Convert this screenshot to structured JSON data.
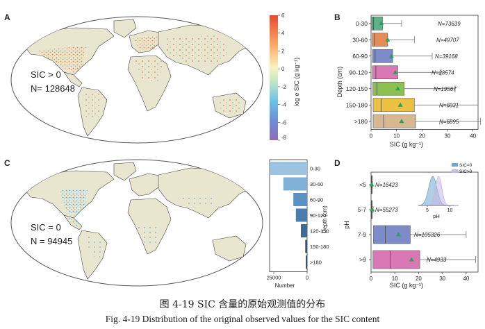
{
  "panelA": {
    "letter": "A",
    "annot_line1": "SIC > 0",
    "annot_line2": "N= 128648",
    "colorbar": {
      "ticks": [
        "6",
        "4",
        "2",
        "0",
        "-2",
        "-4",
        "-6",
        "-8"
      ],
      "label": "log e SIC (g kg⁻¹)"
    }
  },
  "panelB": {
    "letter": "B",
    "xlabel": "SIC (g kg⁻¹)",
    "ylabel": "Depth (cm)",
    "xticks": [
      "0",
      "10",
      "20",
      "30",
      "40"
    ]
  },
  "panelC": {
    "letter": "C",
    "annot_line1": "SIC = 0",
    "annot_line2": "N = 94945",
    "hist_xlabel": "Number",
    "hist_ylabel": "Depth (cm)",
    "hist_xticks": [
      "25000",
      "0"
    ]
  },
  "panelD": {
    "letter": "D",
    "xlabel": "SIC (g kg⁻¹)",
    "ylabel": "pH",
    "xticks": [
      "0",
      "10",
      "20",
      "30",
      "40"
    ],
    "inset": {
      "xlabel": "pH",
      "xticks": [
        "5",
        "10"
      ],
      "legend": [
        "SIC=0",
        "SIC>0"
      ]
    }
  },
  "caption": {
    "cn": "图 4-19   SIC 含量的原始观测值的分布",
    "en": "Fig. 4-19 Distribution of the original observed values for the SIC content"
  },
  "chart_data": [
    {
      "type": "box",
      "name": "B",
      "categories": [
        "0-30",
        "30-60",
        "60-90",
        "90-120",
        "120-150",
        "150-180",
        ">180"
      ],
      "n_labels": [
        "N=73639",
        "N=49707",
        "N=39168",
        "N=28574",
        "N=19567",
        "N=6031",
        "N=6895"
      ],
      "q1": [
        0.3,
        0.5,
        0.6,
        0.6,
        0.7,
        0.8,
        0.8
      ],
      "median": [
        1.0,
        1.4,
        1.6,
        1.9,
        2.3,
        4.0,
        5.0
      ],
      "q3": [
        4.5,
        6.5,
        8.5,
        10.5,
        13,
        17,
        17.5
      ],
      "mean": [
        4.0,
        6.5,
        8.0,
        9.5,
        10.5,
        11.5,
        12.0
      ],
      "whisker_max": [
        12,
        17,
        24,
        27.5,
        33,
        42,
        43
      ],
      "colors": [
        "#5fb08c",
        "#e68c5a",
        "#7d8cc8",
        "#d978b4",
        "#8cc050",
        "#eec040",
        "#d8b890"
      ],
      "xlim": [
        0,
        42
      ]
    },
    {
      "type": "bar",
      "name": "C-histogram",
      "categories": [
        "0-30",
        "30-60",
        "60-90",
        "90-120",
        "120-150",
        "150-180",
        ">180"
      ],
      "values": [
        30000,
        19000,
        11000,
        9000,
        5000,
        1500,
        1000
      ],
      "colors": [
        "#9cc3e2",
        "#7fb0d8",
        "#5b92c4",
        "#4a7cae",
        "#3e6a96",
        "#2f5478",
        "#26445e"
      ],
      "xlim": [
        0,
        30000
      ]
    },
    {
      "type": "box",
      "name": "D",
      "categories": [
        "<5",
        "5-7",
        "7-9",
        ">9"
      ],
      "n_labels": [
        "N=16423",
        "N=55273",
        "N=105326",
        "N=4933"
      ],
      "q1": [
        0.1,
        0.1,
        1.0,
        0.8
      ],
      "median": [
        0.2,
        0.2,
        6.0,
        8.0
      ],
      "q3": [
        0.3,
        0.3,
        16.5,
        20.5
      ],
      "mean": [
        0.3,
        0.5,
        11.5,
        17.0
      ],
      "whisker_max": [
        0.6,
        0.9,
        40,
        44
      ],
      "colors": [
        "#888888",
        "#888888",
        "#7d8cc8",
        "#d978b4"
      ],
      "xlim": [
        0,
        45
      ]
    },
    {
      "type": "density",
      "name": "D-inset",
      "series": [
        {
          "name": "SIC=0",
          "peak": 6.2,
          "sd": 0.9,
          "color": "#6ea8d0"
        },
        {
          "name": "SIC>0",
          "peak": 7.5,
          "sd": 0.7,
          "color": "#c9b7e0"
        }
      ],
      "xlim": [
        3,
        11
      ]
    }
  ]
}
